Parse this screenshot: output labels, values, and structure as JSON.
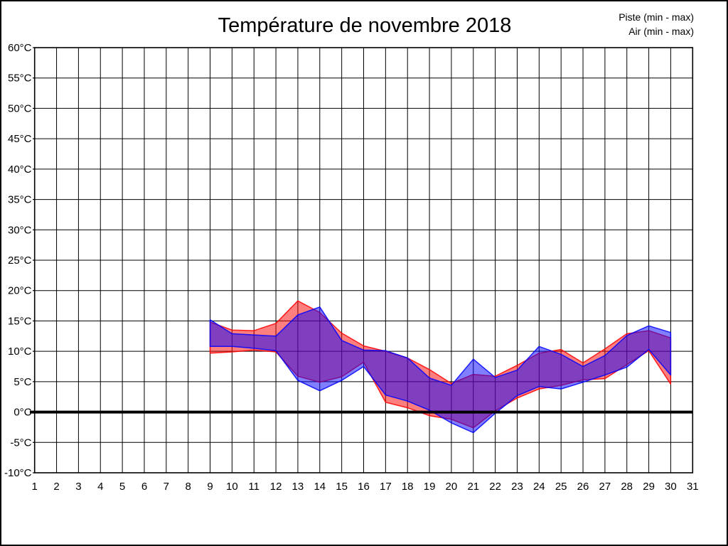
{
  "title": "Température de novembre 2018",
  "legend": [
    {
      "label": "Piste (min - max)",
      "color": "#ff0000"
    },
    {
      "label": "Air (min - max)",
      "color": "#0000ff"
    }
  ],
  "chart_data": {
    "type": "area",
    "subtype": "min-max-bands",
    "title": "Température de novembre 2018",
    "xlabel": "",
    "ylabel": "",
    "xlim": [
      1,
      31
    ],
    "ylim": [
      -10,
      60
    ],
    "grid": true,
    "legend_position": "top-right",
    "zero_line": true,
    "x_ticks": [
      1,
      2,
      3,
      4,
      5,
      6,
      7,
      8,
      9,
      10,
      11,
      12,
      13,
      14,
      15,
      16,
      17,
      18,
      19,
      20,
      21,
      22,
      23,
      24,
      25,
      26,
      27,
      28,
      29,
      30,
      31
    ],
    "y_ticks": [
      {
        "value": 60,
        "label": "60°C"
      },
      {
        "value": 55,
        "label": "55°C"
      },
      {
        "value": 50,
        "label": "50°C"
      },
      {
        "value": 45,
        "label": "45°C"
      },
      {
        "value": 40,
        "label": "40°C"
      },
      {
        "value": 35,
        "label": "35°C"
      },
      {
        "value": 30,
        "label": "30°C"
      },
      {
        "value": 25,
        "label": "25°C"
      },
      {
        "value": 20,
        "label": "20°C"
      },
      {
        "value": 15,
        "label": "15°C"
      },
      {
        "value": 10,
        "label": "10°C"
      },
      {
        "value": 5,
        "label": "5°C"
      },
      {
        "value": 0,
        "label": "0°C"
      },
      {
        "value": -5,
        "label": "-5°C"
      },
      {
        "value": -10,
        "label": "-10°C"
      }
    ],
    "days": [
      9,
      10,
      11,
      12,
      13,
      14,
      15,
      16,
      17,
      18,
      19,
      20,
      21,
      22,
      23,
      24,
      25,
      26,
      27,
      28,
      29,
      30
    ],
    "series": [
      {
        "name": "Piste (min - max)",
        "color": "#ff0000",
        "fill_opacity": 0.5,
        "min": [
          9.7,
          9.9,
          10.2,
          9.9,
          5.9,
          4.9,
          5.8,
          8.2,
          1.6,
          0.7,
          -0.6,
          -1.2,
          -2.6,
          0.2,
          2.3,
          3.8,
          4.4,
          5.3,
          5.5,
          7.8,
          10.1,
          4.6
        ],
        "max": [
          14.8,
          13.5,
          13.4,
          14.6,
          18.3,
          16.4,
          13.0,
          10.9,
          10.0,
          8.9,
          7.0,
          4.7,
          6.2,
          5.9,
          7.7,
          9.7,
          10.3,
          8.1,
          10.4,
          12.9,
          13.4,
          12.2
        ]
      },
      {
        "name": "Air (min - max)",
        "color": "#0000ff",
        "fill_opacity": 0.5,
        "min": [
          10.8,
          10.8,
          10.5,
          10.1,
          5.2,
          3.5,
          5.2,
          7.5,
          2.8,
          1.8,
          0.3,
          -1.8,
          -3.4,
          -0.2,
          2.7,
          4.2,
          3.8,
          4.9,
          6.1,
          7.4,
          10.3,
          6.1
        ],
        "max": [
          15.2,
          12.9,
          12.7,
          12.5,
          16.0,
          17.3,
          11.8,
          10.2,
          10.1,
          8.9,
          5.6,
          4.4,
          8.7,
          5.7,
          6.9,
          10.8,
          9.5,
          7.5,
          9.3,
          12.6,
          14.2,
          13.1
        ]
      }
    ]
  }
}
